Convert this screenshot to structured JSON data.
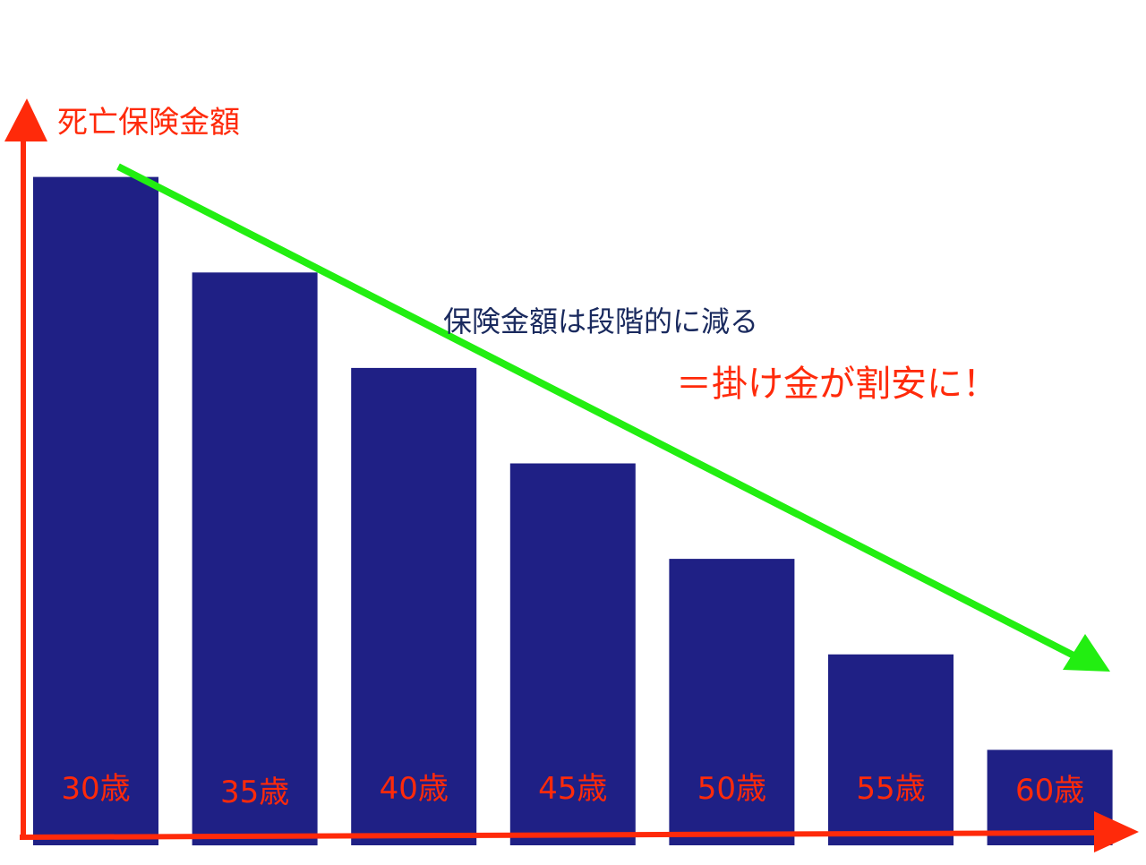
{
  "colors": {
    "bar": "#1f2085",
    "axis": "#ff2a0a",
    "trend": "#22ee11",
    "tick_label": "#ff2a0a",
    "note": "#1a2a5e",
    "callout": "#ff2a0a",
    "ylabel": "#ff2a0a"
  },
  "chart_data": {
    "type": "bar",
    "title": "",
    "xlabel": "",
    "ylabel": "死亡保険金額",
    "categories": [
      "30歳",
      "35歳",
      "40歳",
      "45歳",
      "50歳",
      "55歳",
      "60歳"
    ],
    "values": [
      7,
      6,
      5,
      4,
      3,
      2,
      1
    ],
    "ylim": [
      0,
      8
    ],
    "grid": false,
    "legend": "none",
    "annotations": {
      "trend_note": "保険金額は段階的に減る",
      "callout": "＝掛け金が割安に！"
    }
  }
}
